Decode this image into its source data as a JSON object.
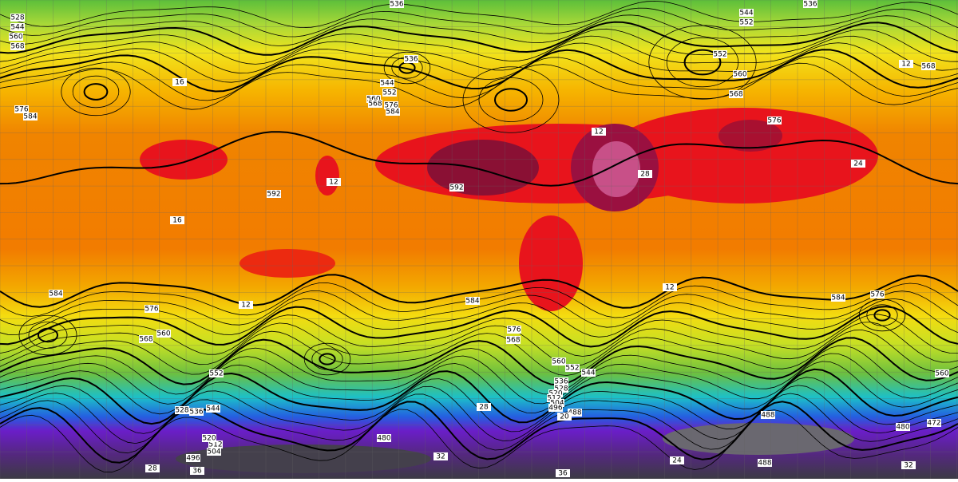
{
  "contour_labels": [
    536,
    536,
    528,
    544,
    560,
    568,
    544,
    552,
    536,
    544,
    552,
    560,
    568,
    576,
    584,
    552,
    560,
    568,
    576,
    568,
    576,
    584,
    592,
    592,
    584,
    576,
    584,
    584,
    576,
    576,
    568,
    560,
    552,
    544,
    536,
    528,
    520,
    512,
    504,
    496,
    488,
    480,
    488,
    496,
    504,
    512,
    520,
    528,
    536,
    544,
    552,
    560,
    568,
    472,
    480,
    488,
    560
  ],
  "temperature_labels": [
    16,
    12,
    12,
    12,
    16,
    20,
    24,
    28,
    32,
    36,
    36,
    32,
    28,
    24,
    12,
    28,
    12
  ]
}
